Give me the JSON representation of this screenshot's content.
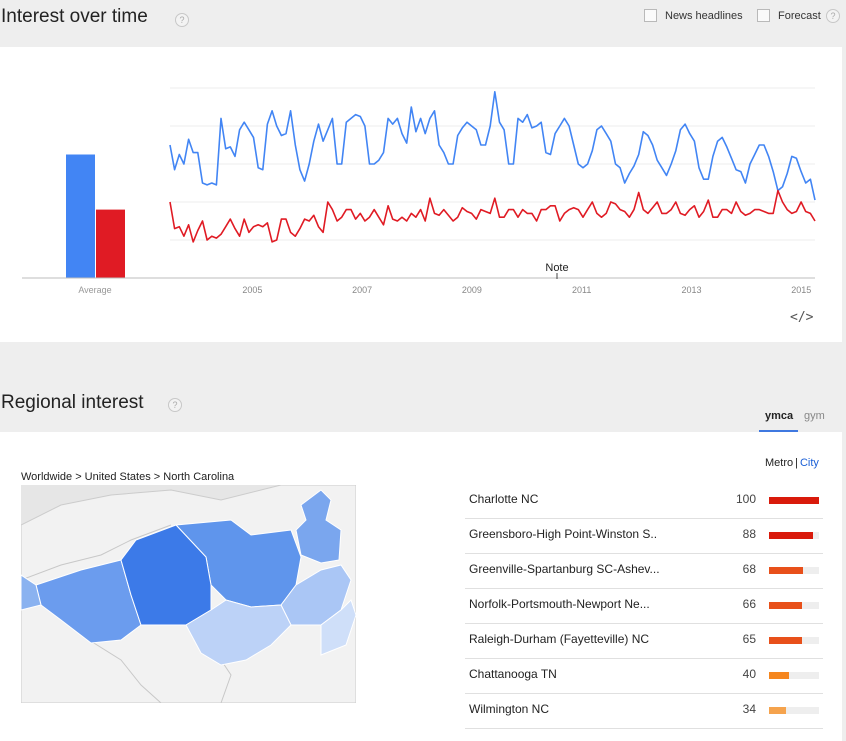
{
  "interest_over_time": {
    "title": "Interest over time",
    "help": "?",
    "news_headlines": "News headlines",
    "forecast": "Forecast",
    "average_label": "Average",
    "note_label": "Note",
    "embed_icon_text": "</>"
  },
  "regional_interest": {
    "title": "Regional interest",
    "help": "?",
    "tabs": [
      {
        "label": "ymca",
        "active": true
      },
      {
        "label": "gym",
        "active": false
      }
    ],
    "breadcrumb": "Worldwide > United States > North Carolina",
    "metro_label": "Metro",
    "separator": "|",
    "city_label": "City",
    "rows": [
      {
        "name": "Charlotte NC",
        "value": 100,
        "color": "#d91a0b"
      },
      {
        "name": "Greensboro-High Point-Winston S..",
        "value": 88,
        "color": "#d91a0b"
      },
      {
        "name": "Greenville-Spartanburg SC-Ashev...",
        "value": 68,
        "color": "#e8501a"
      },
      {
        "name": "Norfolk-Portsmouth-Newport Ne...",
        "value": 66,
        "color": "#e8501a"
      },
      {
        "name": "Raleigh-Durham (Fayetteville) NC",
        "value": 65,
        "color": "#e8501a"
      },
      {
        "name": "Chattanooga TN",
        "value": 40,
        "color": "#f5861e"
      },
      {
        "name": "Wilmington NC",
        "value": 34,
        "color": "#f5a34d"
      }
    ]
  },
  "chart_data": {
    "type": "line",
    "x_ticks": [
      "2005",
      "2007",
      "2009",
      "2011",
      "2013",
      "2015"
    ],
    "x_range": [
      2004.0,
      2015.75
    ],
    "ylim": [
      0,
      100
    ],
    "grid": true,
    "average": [
      {
        "name": "ymca",
        "value": 65,
        "color": "#4285f4"
      },
      {
        "name": "gym",
        "value": 36,
        "color": "#e01b24"
      }
    ],
    "series": [
      {
        "name": "ymca",
        "color": "#4285f4",
        "values": [
          70,
          57,
          65,
          60,
          73,
          66,
          66,
          50,
          49,
          50,
          49,
          84,
          68,
          69,
          64,
          78,
          82,
          78,
          74,
          58,
          57,
          81,
          88,
          80,
          75,
          76,
          88,
          70,
          57,
          51,
          60,
          72,
          81,
          72,
          78,
          84,
          60,
          60,
          82,
          84,
          86,
          85,
          80,
          60,
          60,
          62,
          66,
          84,
          81,
          84,
          76,
          71,
          90,
          77,
          84,
          76,
          84,
          88,
          70,
          66,
          60,
          60,
          75,
          79,
          82,
          80,
          78,
          70,
          70,
          80,
          98,
          82,
          78,
          60,
          60,
          84,
          82,
          86,
          79,
          80,
          82,
          66,
          65,
          76,
          80,
          84,
          80,
          70,
          60,
          58,
          60,
          67,
          78,
          80,
          76,
          72,
          60,
          58,
          50,
          55,
          59,
          65,
          77,
          75,
          70,
          62,
          58,
          54,
          60,
          67,
          78,
          81,
          76,
          72,
          58,
          52,
          52,
          64,
          72,
          74,
          69,
          63,
          57,
          56,
          50,
          60,
          65,
          70,
          70,
          64,
          56,
          46,
          48,
          55,
          64,
          63,
          56,
          50,
          52,
          41
        ]
      },
      {
        "name": "gym",
        "color": "#e01b24",
        "values": [
          40,
          26,
          27,
          22,
          28,
          19,
          25,
          30,
          20,
          22,
          21,
          23,
          27,
          31,
          26,
          22,
          31,
          24,
          27,
          28,
          27,
          29,
          19,
          20,
          31,
          31,
          24,
          22,
          26,
          31,
          30,
          33,
          27,
          24,
          40,
          36,
          30,
          32,
          36,
          36,
          31,
          34,
          30,
          32,
          36,
          32,
          28,
          38,
          31,
          30,
          32,
          30,
          34,
          32,
          36,
          30,
          42,
          34,
          33,
          36,
          33,
          30,
          32,
          37,
          35,
          34,
          31,
          36,
          35,
          34,
          42,
          32,
          32,
          36,
          36,
          32,
          36,
          34,
          34,
          30,
          36,
          36,
          38,
          38,
          30,
          34,
          36,
          37,
          36,
          32,
          36,
          40,
          34,
          32,
          34,
          40,
          39,
          36,
          35,
          32,
          36,
          45,
          36,
          34,
          37,
          40,
          34,
          34,
          36,
          40,
          34,
          33,
          36,
          38,
          32,
          35,
          41,
          32,
          32,
          36,
          36,
          34,
          40,
          35,
          33,
          34,
          36,
          36,
          35,
          34,
          34,
          46,
          40,
          36,
          34,
          35,
          40,
          35,
          34,
          30
        ]
      }
    ]
  }
}
